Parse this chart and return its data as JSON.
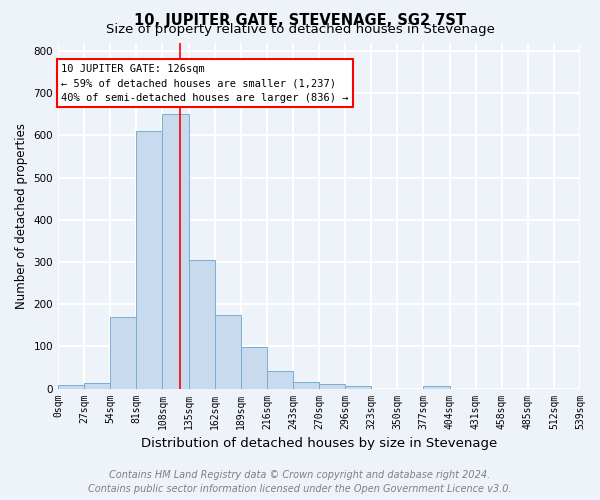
{
  "title": "10, JUPITER GATE, STEVENAGE, SG2 7ST",
  "subtitle": "Size of property relative to detached houses in Stevenage",
  "xlabel": "Distribution of detached houses by size in Stevenage",
  "ylabel": "Number of detached properties",
  "footer_line1": "Contains HM Land Registry data © Crown copyright and database right 2024.",
  "footer_line2": "Contains public sector information licensed under the Open Government Licence v3.0.",
  "bin_edges": [
    0,
    27,
    54,
    81,
    108,
    135,
    162,
    189,
    216,
    243,
    270,
    297,
    324,
    351,
    378,
    405,
    432,
    459,
    486,
    513,
    540
  ],
  "bar_heights": [
    8,
    12,
    170,
    610,
    650,
    305,
    175,
    98,
    42,
    15,
    10,
    5,
    0,
    0,
    7,
    0,
    0,
    0,
    0,
    0
  ],
  "bar_color": "#c8daee",
  "bar_edge_color": "#7aadd4",
  "bar_alpha": 1.0,
  "vline_x": 126,
  "vline_color": "red",
  "annotation_text": "10 JUPITER GATE: 126sqm\n← 59% of detached houses are smaller (1,237)\n40% of semi-detached houses are larger (836) →",
  "annotation_box_color": "white",
  "annotation_box_edge_color": "red",
  "ylim": [
    0,
    820
  ],
  "xlim": [
    0,
    540
  ],
  "tick_labels": [
    "0sqm",
    "27sqm",
    "54sqm",
    "81sqm",
    "108sqm",
    "135sqm",
    "162sqm",
    "189sqm",
    "216sqm",
    "243sqm",
    "270sqm",
    "296sqm",
    "323sqm",
    "350sqm",
    "377sqm",
    "404sqm",
    "431sqm",
    "458sqm",
    "485sqm",
    "512sqm",
    "539sqm"
  ],
  "yticks": [
    0,
    100,
    200,
    300,
    400,
    500,
    600,
    700,
    800
  ],
  "background_color": "#eef2f9",
  "axes_background_color": "#eef2f9",
  "grid_color": "white",
  "title_fontsize": 10.5,
  "subtitle_fontsize": 9.5,
  "xlabel_fontsize": 9.5,
  "ylabel_fontsize": 8.5,
  "tick_fontsize": 7,
  "annotation_fontsize": 7.5,
  "footer_fontsize": 7
}
